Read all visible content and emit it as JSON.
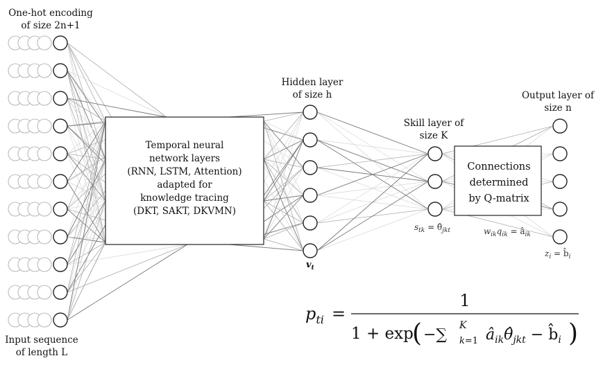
{
  "labels": {
    "input_top_line1": "One-hot encoding",
    "input_top_line2": "of size 2n+1",
    "input_bottom_line1": "Input sequence",
    "input_bottom_line2": "of length L",
    "hidden_line1": "Hidden layer",
    "hidden_line2": "of size h",
    "skill_line1": "Skill layer of",
    "skill_line2": "size K",
    "output_line1": "Output layer of",
    "output_line2": "size n",
    "temporal_box": [
      "Temporal neural",
      "network layers",
      "(RNN, LSTM, Attention)",
      "adapted for",
      "knowledge tracing",
      "(DKT, SAKT, DKVMN)"
    ],
    "qmatrix_box": [
      "Connections",
      "determined",
      "by Q-matrix"
    ],
    "vt": "v",
    "vt_sub": "t",
    "s_eq": "s",
    "s_sub": "tk",
    "s_rhs": " = θ̂",
    "s_rhs_sub": "jkt",
    "w_eq": "w",
    "w_sub": "ik",
    "q_eq": "q",
    "q_sub": "ik",
    "a_rhs": " = â",
    "a_rhs_sub": "ik",
    "z_eq": "z",
    "z_sub": "i",
    "b_rhs": " = b̂",
    "b_rhs_sub": "i"
  },
  "formula": {
    "lhs": "p",
    "lhs_sub": "ti",
    "equals": "=",
    "numerator": "1",
    "denominator_prefix": "1 + exp",
    "open_paren": "(",
    "minus_sum": "−∑",
    "sum_sup": "K",
    "sum_sub": "k=1",
    "term1": "â",
    "term1_sub": "ik",
    "term2": "θ̂",
    "term2_sub": "jkt",
    "minus_b": " − b̂",
    "b_sub": "i",
    "close_paren": ")"
  },
  "layers": {
    "input_rows": 11,
    "ghost_per_row": 4,
    "hidden_nodes": 6,
    "skill_nodes": 3,
    "output_nodes": 5
  }
}
